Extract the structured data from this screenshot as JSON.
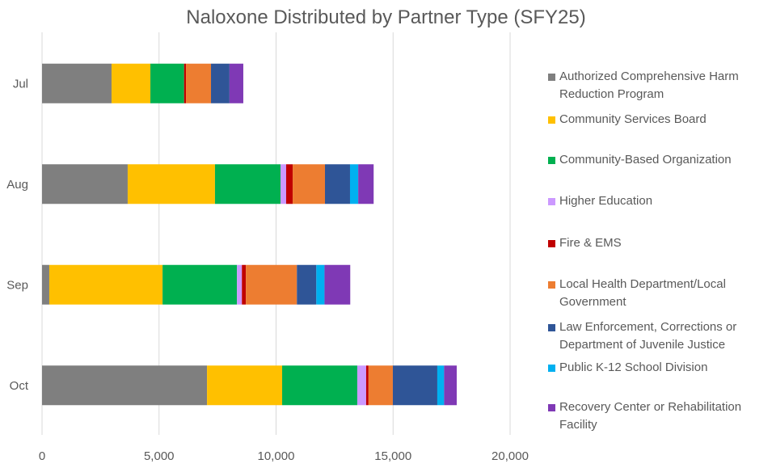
{
  "chart_data": {
    "type": "bar",
    "orientation": "horizontal",
    "stacked": true,
    "title": "Naloxone Distributed by Partner Type (SFY25)",
    "categories": [
      "Jul",
      "Aug",
      "Sep",
      "Oct"
    ],
    "xlim": [
      0,
      20000
    ],
    "xticks": [
      "0",
      "5,000",
      "10,000",
      "15,000",
      "20,000"
    ],
    "xtick_values": [
      0,
      5000,
      10000,
      15000,
      20000
    ],
    "grid": true,
    "legend_position": "right",
    "series": [
      {
        "name": "Authorized Comprehensive Harm Reduction Program",
        "color": "#7f7f7f",
        "values": [
          2970,
          3660,
          310,
          7050
        ]
      },
      {
        "name": "Community Services Board",
        "color": "#ffc000",
        "values": [
          1660,
          3730,
          4840,
          3210
        ]
      },
      {
        "name": "Community-Based Organization",
        "color": "#00b050",
        "values": [
          1440,
          2800,
          3180,
          3210
        ]
      },
      {
        "name": "Higher Education",
        "color": "#cc99ff",
        "values": [
          0,
          240,
          210,
          380
        ]
      },
      {
        "name": "Fire & EMS",
        "color": "#c00000",
        "values": [
          80,
          280,
          170,
          100
        ]
      },
      {
        "name": "Local Health Department/Local Government",
        "color": "#ed7d31",
        "values": [
          1070,
          1380,
          2180,
          1040
        ]
      },
      {
        "name": "Law Enforcement, Corrections or Department of Juvenile Justice",
        "color": "#2f5597",
        "values": [
          790,
          1070,
          830,
          1900
        ]
      },
      {
        "name": "Public K-12 School Division",
        "color": "#00b0f0",
        "values": [
          0,
          350,
          350,
          290
        ]
      },
      {
        "name": "Recovery Center or Rehabilitation Facility",
        "color": "#7f39b5",
        "values": [
          590,
          660,
          1100,
          540
        ]
      }
    ]
  }
}
